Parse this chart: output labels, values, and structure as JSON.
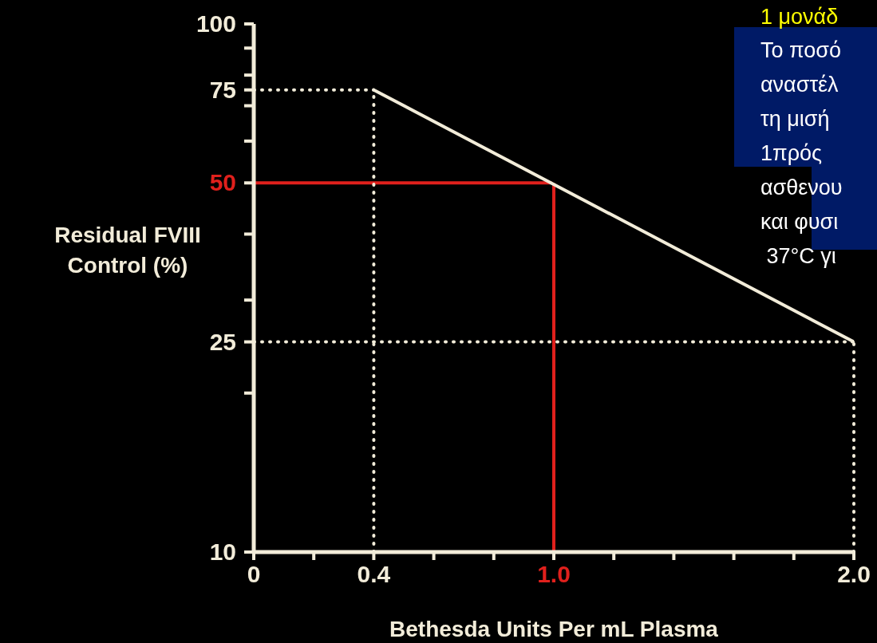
{
  "chart_data": {
    "type": "line",
    "xlabel": "Bethesda Units Per mL Plasma",
    "ylabel": "Residual FVIII Control (%)",
    "x": [
      0.4,
      2.0
    ],
    "series": [
      {
        "color": "#f2ecd9",
        "values": [
          75,
          25
        ]
      }
    ],
    "xlim": [
      0,
      2.0
    ],
    "xticks": [
      0,
      {
        "value": 0.2,
        "label": null
      },
      0.4,
      {
        "value": 0.6,
        "label": null
      },
      {
        "value": 0.8,
        "label": null
      },
      {
        "value": 1,
        "label": "1.0"
      },
      {
        "value": 1.2,
        "label": null
      },
      {
        "value": 1.4,
        "label": null
      },
      {
        "value": 1.6,
        "label": null
      },
      {
        "value": 1.8,
        "label": null
      },
      {
        "value": 2,
        "label": "2.0"
      }
    ],
    "ylim": [
      10,
      100
    ],
    "yticks": [
      10,
      {
        "value": 20,
        "label": null
      },
      25,
      {
        "value": 30,
        "label": null
      },
      {
        "value": 40,
        "label": null
      },
      50,
      {
        "value": 60,
        "label": null
      },
      {
        "value": 70,
        "label": null
      },
      75,
      {
        "value": 80,
        "label": null
      },
      {
        "value": 90,
        "label": null
      },
      100
    ],
    "log": "y",
    "marker": "none",
    "line_style": "solid",
    "ref_lines": [
      {
        "axis": "y",
        "value": 50,
        "color": "#e0201c",
        "line_style": "solid"
      },
      {
        "axis": "x",
        "value": 1,
        "color": "#e0201c",
        "line_style": "solid"
      },
      {
        "axis": "y",
        "value": 75,
        "color": "#f2ecd9",
        "line_style": "dotted"
      },
      {
        "axis": "x",
        "value": 0.4,
        "color": "#f2ecd9",
        "line_style": "dotted"
      },
      {
        "axis": "y",
        "value": 25,
        "color": "#f2ecd9",
        "line_style": "dotted"
      },
      {
        "axis": "x",
        "value": 2,
        "color": "#f2ecd9",
        "line_style": "dotted"
      }
    ],
    "annotations": [
      "1 μονάδ",
      "Το ποσό\nαναστέλ\nτη μισή\n1πρός\nασθενου\nκαι φυσι\n 37°C γι"
    ]
  }
}
